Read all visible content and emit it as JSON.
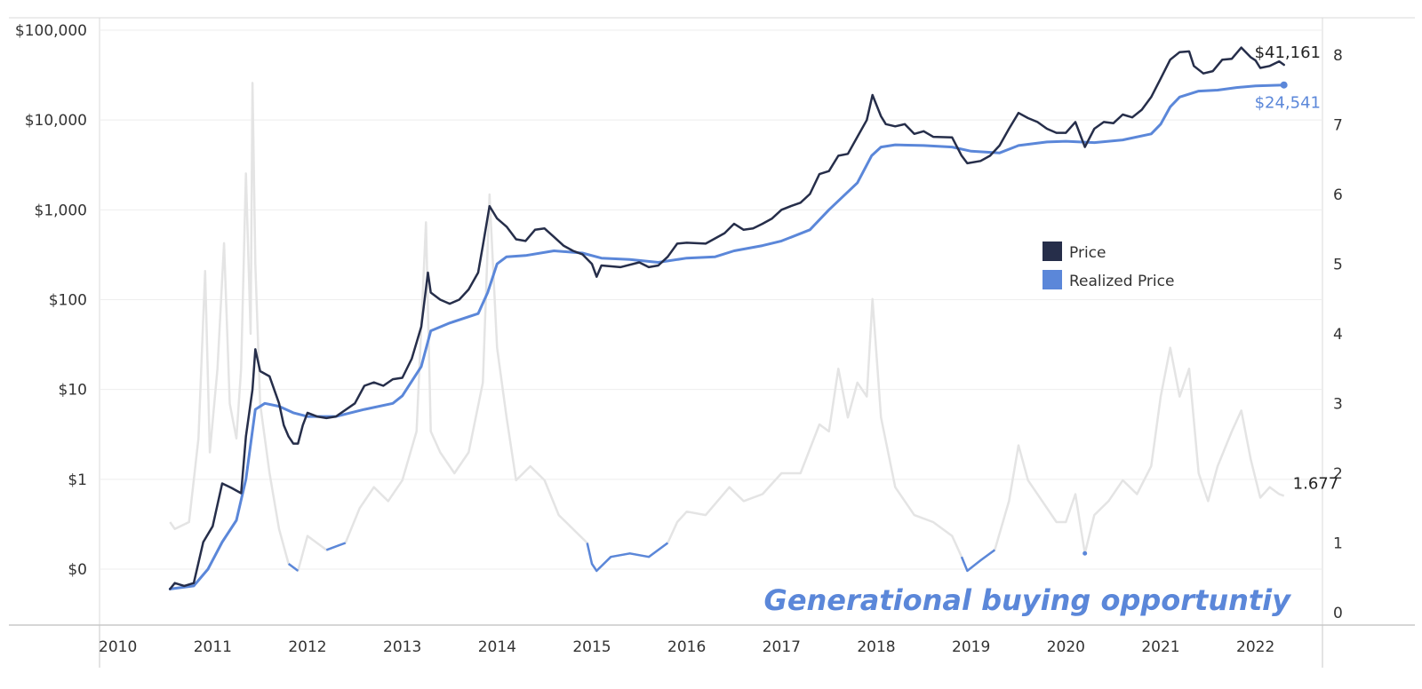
{
  "chart_data": {
    "type": "line",
    "title": "",
    "xlabel": "",
    "ylabel_left": "",
    "ylabel_right": "",
    "x_ticks": [
      "2010",
      "2011",
      "2012",
      "2013",
      "2014",
      "2015",
      "2016",
      "2017",
      "2018",
      "2019",
      "2020",
      "2021",
      "2022"
    ],
    "y_left_ticks": [
      "$100,000",
      "$10,000",
      "$1,000",
      "$100",
      "$10",
      "$1",
      "$0"
    ],
    "y_left_values": [
      100000,
      10000,
      1000,
      100,
      10,
      1,
      0.1
    ],
    "y_left_scale": "log",
    "y_right_ticks": [
      "8",
      "7",
      "6",
      "5",
      "4",
      "3",
      "2",
      "1",
      "0"
    ],
    "y_right_values": [
      8,
      7,
      6,
      5,
      4,
      3,
      2,
      1,
      0
    ],
    "x_range": [
      2009.9,
      2022.8
    ],
    "legend": {
      "position": "right-middle",
      "items": [
        {
          "label": "Price",
          "color": "#262e4a"
        },
        {
          "label": "Realized Price",
          "color": "#5b87d9"
        }
      ]
    },
    "annotations": {
      "price_last": "$41,161",
      "realized_last": "$24,541",
      "ratio_last": "1.677",
      "headline": "Generational buying opportuntiy"
    },
    "series": [
      {
        "name": "Price",
        "axis": "left",
        "color": "#262e4a",
        "points": [
          [
            2010.55,
            0.06
          ],
          [
            2010.6,
            0.07
          ],
          [
            2010.7,
            0.065
          ],
          [
            2010.8,
            0.07
          ],
          [
            2010.9,
            0.2
          ],
          [
            2011.0,
            0.3
          ],
          [
            2011.1,
            0.9
          ],
          [
            2011.2,
            0.8
          ],
          [
            2011.3,
            0.7
          ],
          [
            2011.35,
            3.0
          ],
          [
            2011.42,
            10.0
          ],
          [
            2011.45,
            28.0
          ],
          [
            2011.5,
            16.0
          ],
          [
            2011.6,
            14.0
          ],
          [
            2011.7,
            7.0
          ],
          [
            2011.75,
            4.0
          ],
          [
            2011.8,
            3.0
          ],
          [
            2011.85,
            2.5
          ],
          [
            2011.9,
            2.5
          ],
          [
            2011.95,
            4.0
          ],
          [
            2012.0,
            5.5
          ],
          [
            2012.1,
            5.0
          ],
          [
            2012.2,
            4.8
          ],
          [
            2012.3,
            5.0
          ],
          [
            2012.5,
            7.0
          ],
          [
            2012.6,
            11.0
          ],
          [
            2012.7,
            12.0
          ],
          [
            2012.8,
            11.0
          ],
          [
            2012.9,
            13.0
          ],
          [
            2013.0,
            13.5
          ],
          [
            2013.1,
            22.0
          ],
          [
            2013.2,
            50.0
          ],
          [
            2013.27,
            200.0
          ],
          [
            2013.3,
            120.0
          ],
          [
            2013.4,
            100.0
          ],
          [
            2013.5,
            90.0
          ],
          [
            2013.6,
            100.0
          ],
          [
            2013.7,
            130.0
          ],
          [
            2013.8,
            200.0
          ],
          [
            2013.85,
            400.0
          ],
          [
            2013.92,
            1100.0
          ],
          [
            2014.0,
            800.0
          ],
          [
            2014.1,
            650.0
          ],
          [
            2014.2,
            470.0
          ],
          [
            2014.3,
            450.0
          ],
          [
            2014.4,
            600.0
          ],
          [
            2014.5,
            620.0
          ],
          [
            2014.6,
            500.0
          ],
          [
            2014.7,
            400.0
          ],
          [
            2014.8,
            350.0
          ],
          [
            2014.9,
            320.0
          ],
          [
            2015.0,
            250.0
          ],
          [
            2015.05,
            180.0
          ],
          [
            2015.1,
            240.0
          ],
          [
            2015.3,
            230.0
          ],
          [
            2015.5,
            260.0
          ],
          [
            2015.6,
            230.0
          ],
          [
            2015.7,
            240.0
          ],
          [
            2015.8,
            300.0
          ],
          [
            2015.9,
            420.0
          ],
          [
            2016.0,
            430.0
          ],
          [
            2016.2,
            420.0
          ],
          [
            2016.4,
            550.0
          ],
          [
            2016.5,
            700.0
          ],
          [
            2016.6,
            600.0
          ],
          [
            2016.7,
            620.0
          ],
          [
            2016.8,
            700.0
          ],
          [
            2016.9,
            800.0
          ],
          [
            2017.0,
            1000.0
          ],
          [
            2017.1,
            1100.0
          ],
          [
            2017.2,
            1200.0
          ],
          [
            2017.3,
            1500.0
          ],
          [
            2017.4,
            2500.0
          ],
          [
            2017.5,
            2700.0
          ],
          [
            2017.6,
            4000.0
          ],
          [
            2017.7,
            4200.0
          ],
          [
            2017.8,
            6500.0
          ],
          [
            2017.9,
            10000.0
          ],
          [
            2017.96,
            19000.0
          ],
          [
            2018.05,
            11000.0
          ],
          [
            2018.1,
            9000.0
          ],
          [
            2018.2,
            8500.0
          ],
          [
            2018.3,
            9000.0
          ],
          [
            2018.4,
            7000.0
          ],
          [
            2018.5,
            7500.0
          ],
          [
            2018.6,
            6500.0
          ],
          [
            2018.8,
            6400.0
          ],
          [
            2018.9,
            4000.0
          ],
          [
            2018.96,
            3300.0
          ],
          [
            2019.1,
            3500.0
          ],
          [
            2019.2,
            4000.0
          ],
          [
            2019.3,
            5200.0
          ],
          [
            2019.4,
            8000.0
          ],
          [
            2019.5,
            12000.0
          ],
          [
            2019.6,
            10500.0
          ],
          [
            2019.7,
            9500.0
          ],
          [
            2019.8,
            8000.0
          ],
          [
            2019.9,
            7200.0
          ],
          [
            2020.0,
            7200.0
          ],
          [
            2020.1,
            9500.0
          ],
          [
            2020.2,
            5000.0
          ],
          [
            2020.3,
            8000.0
          ],
          [
            2020.4,
            9500.0
          ],
          [
            2020.5,
            9200.0
          ],
          [
            2020.6,
            11500.0
          ],
          [
            2020.7,
            10700.0
          ],
          [
            2020.8,
            13000.0
          ],
          [
            2020.9,
            18000.0
          ],
          [
            2021.0,
            29000.0
          ],
          [
            2021.1,
            47000.0
          ],
          [
            2021.2,
            57000.0
          ],
          [
            2021.3,
            58000.0
          ],
          [
            2021.35,
            40000.0
          ],
          [
            2021.45,
            33000.0
          ],
          [
            2021.55,
            35000.0
          ],
          [
            2021.65,
            47000.0
          ],
          [
            2021.75,
            48000.0
          ],
          [
            2021.85,
            64000.0
          ],
          [
            2021.95,
            50000.0
          ],
          [
            2022.0,
            46000.0
          ],
          [
            2022.05,
            38000.0
          ],
          [
            2022.15,
            40000.0
          ],
          [
            2022.25,
            45000.0
          ],
          [
            2022.3,
            41161.0
          ]
        ]
      },
      {
        "name": "Realized Price",
        "axis": "left",
        "color": "#5b87d9",
        "points": [
          [
            2010.55,
            0.06
          ],
          [
            2010.8,
            0.065
          ],
          [
            2010.95,
            0.1
          ],
          [
            2011.1,
            0.2
          ],
          [
            2011.25,
            0.35
          ],
          [
            2011.35,
            1.0
          ],
          [
            2011.45,
            6.0
          ],
          [
            2011.55,
            7.0
          ],
          [
            2011.7,
            6.5
          ],
          [
            2011.85,
            5.5
          ],
          [
            2012.0,
            5.0
          ],
          [
            2012.3,
            5.0
          ],
          [
            2012.6,
            6.0
          ],
          [
            2012.9,
            7.0
          ],
          [
            2013.0,
            8.5
          ],
          [
            2013.2,
            18.0
          ],
          [
            2013.3,
            45.0
          ],
          [
            2013.5,
            55.0
          ],
          [
            2013.8,
            70.0
          ],
          [
            2013.9,
            120.0
          ],
          [
            2014.0,
            250.0
          ],
          [
            2014.1,
            300.0
          ],
          [
            2014.3,
            310.0
          ],
          [
            2014.6,
            350.0
          ],
          [
            2014.9,
            330.0
          ],
          [
            2015.1,
            290.0
          ],
          [
            2015.4,
            280.0
          ],
          [
            2015.7,
            260.0
          ],
          [
            2016.0,
            290.0
          ],
          [
            2016.3,
            300.0
          ],
          [
            2016.5,
            350.0
          ],
          [
            2016.8,
            400.0
          ],
          [
            2017.0,
            450.0
          ],
          [
            2017.3,
            600.0
          ],
          [
            2017.5,
            1000.0
          ],
          [
            2017.8,
            2000.0
          ],
          [
            2017.95,
            4000.0
          ],
          [
            2018.05,
            5000.0
          ],
          [
            2018.2,
            5300.0
          ],
          [
            2018.5,
            5200.0
          ],
          [
            2018.8,
            5000.0
          ],
          [
            2019.0,
            4500.0
          ],
          [
            2019.3,
            4300.0
          ],
          [
            2019.5,
            5200.0
          ],
          [
            2019.8,
            5700.0
          ],
          [
            2020.0,
            5800.0
          ],
          [
            2020.3,
            5600.0
          ],
          [
            2020.6,
            6000.0
          ],
          [
            2020.9,
            7000.0
          ],
          [
            2021.0,
            9000.0
          ],
          [
            2021.1,
            14000.0
          ],
          [
            2021.2,
            18000.0
          ],
          [
            2021.4,
            21000.0
          ],
          [
            2021.6,
            21500.0
          ],
          [
            2021.8,
            23000.0
          ],
          [
            2022.0,
            24000.0
          ],
          [
            2022.3,
            24541.0
          ]
        ]
      },
      {
        "name": "Price / Realized Price ratio",
        "axis": "right",
        "color": "#e4e4e4",
        "highlight_color": "#5b87d9",
        "highlight_below": 1.0,
        "points": [
          [
            2010.55,
            1.3
          ],
          [
            2010.6,
            1.2
          ],
          [
            2010.75,
            1.3
          ],
          [
            2010.85,
            2.5
          ],
          [
            2010.92,
            4.9
          ],
          [
            2010.97,
            2.3
          ],
          [
            2011.05,
            3.5
          ],
          [
            2011.12,
            5.3
          ],
          [
            2011.18,
            3.0
          ],
          [
            2011.25,
            2.5
          ],
          [
            2011.3,
            3.5
          ],
          [
            2011.35,
            6.3
          ],
          [
            2011.4,
            4.0
          ],
          [
            2011.42,
            7.6
          ],
          [
            2011.45,
            5.0
          ],
          [
            2011.5,
            3.0
          ],
          [
            2011.6,
            2.0
          ],
          [
            2011.7,
            1.2
          ],
          [
            2011.8,
            0.7
          ],
          [
            2011.9,
            0.6
          ],
          [
            2012.0,
            1.1
          ],
          [
            2012.2,
            0.9
          ],
          [
            2012.4,
            1.0
          ],
          [
            2012.55,
            1.5
          ],
          [
            2012.7,
            1.8
          ],
          [
            2012.85,
            1.6
          ],
          [
            2013.0,
            1.9
          ],
          [
            2013.15,
            2.6
          ],
          [
            2013.25,
            5.6
          ],
          [
            2013.3,
            2.6
          ],
          [
            2013.4,
            2.3
          ],
          [
            2013.55,
            2.0
          ],
          [
            2013.7,
            2.3
          ],
          [
            2013.85,
            3.3
          ],
          [
            2013.92,
            6.0
          ],
          [
            2014.0,
            3.8
          ],
          [
            2014.1,
            2.8
          ],
          [
            2014.2,
            1.9
          ],
          [
            2014.35,
            2.1
          ],
          [
            2014.5,
            1.9
          ],
          [
            2014.65,
            1.4
          ],
          [
            2014.8,
            1.2
          ],
          [
            2014.95,
            1.0
          ],
          [
            2015.0,
            0.7
          ],
          [
            2015.05,
            0.6
          ],
          [
            2015.2,
            0.8
          ],
          [
            2015.4,
            0.85
          ],
          [
            2015.6,
            0.8
          ],
          [
            2015.8,
            1.0
          ],
          [
            2015.9,
            1.3
          ],
          [
            2016.0,
            1.45
          ],
          [
            2016.2,
            1.4
          ],
          [
            2016.45,
            1.8
          ],
          [
            2016.6,
            1.6
          ],
          [
            2016.8,
            1.7
          ],
          [
            2017.0,
            2.0
          ],
          [
            2017.2,
            2.0
          ],
          [
            2017.4,
            2.7
          ],
          [
            2017.5,
            2.6
          ],
          [
            2017.6,
            3.5
          ],
          [
            2017.7,
            2.8
          ],
          [
            2017.8,
            3.3
          ],
          [
            2017.9,
            3.1
          ],
          [
            2017.96,
            4.5
          ],
          [
            2018.05,
            2.8
          ],
          [
            2018.2,
            1.8
          ],
          [
            2018.4,
            1.4
          ],
          [
            2018.6,
            1.3
          ],
          [
            2018.8,
            1.1
          ],
          [
            2018.9,
            0.8
          ],
          [
            2018.96,
            0.6
          ],
          [
            2019.1,
            0.75
          ],
          [
            2019.25,
            0.9
          ],
          [
            2019.4,
            1.6
          ],
          [
            2019.5,
            2.4
          ],
          [
            2019.6,
            1.9
          ],
          [
            2019.75,
            1.6
          ],
          [
            2019.9,
            1.3
          ],
          [
            2020.0,
            1.3
          ],
          [
            2020.1,
            1.7
          ],
          [
            2020.2,
            0.85
          ],
          [
            2020.3,
            1.4
          ],
          [
            2020.45,
            1.6
          ],
          [
            2020.6,
            1.9
          ],
          [
            2020.75,
            1.7
          ],
          [
            2020.9,
            2.1
          ],
          [
            2021.0,
            3.1
          ],
          [
            2021.1,
            3.8
          ],
          [
            2021.2,
            3.1
          ],
          [
            2021.3,
            3.5
          ],
          [
            2021.4,
            2.0
          ],
          [
            2021.5,
            1.6
          ],
          [
            2021.6,
            2.1
          ],
          [
            2021.75,
            2.6
          ],
          [
            2021.85,
            2.9
          ],
          [
            2021.95,
            2.2
          ],
          [
            2022.05,
            1.65
          ],
          [
            2022.15,
            1.8
          ],
          [
            2022.25,
            1.7
          ],
          [
            2022.3,
            1.677
          ]
        ]
      }
    ]
  }
}
